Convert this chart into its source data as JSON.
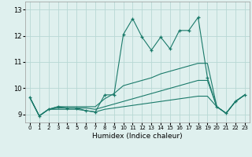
{
  "xlabel": "Humidex (Indice chaleur)",
  "bg_color": "#dff0ee",
  "grid_color": "#b8d8d4",
  "line_color": "#1a7a6a",
  "xlim": [
    -0.5,
    23.5
  ],
  "ylim": [
    8.7,
    13.3
  ],
  "yticks": [
    9,
    10,
    11,
    12,
    13
  ],
  "xticks": [
    0,
    1,
    2,
    3,
    4,
    5,
    6,
    7,
    8,
    9,
    10,
    11,
    12,
    13,
    14,
    15,
    16,
    17,
    18,
    19,
    20,
    21,
    22,
    23
  ],
  "series": [
    [
      9.65,
      8.95,
      9.2,
      9.2,
      9.2,
      9.2,
      9.15,
      9.1,
      9.2,
      9.25,
      9.3,
      9.35,
      9.4,
      9.45,
      9.5,
      9.55,
      9.6,
      9.65,
      9.7,
      9.7,
      9.3,
      9.05,
      9.5,
      9.75
    ],
    [
      9.65,
      8.95,
      9.2,
      9.25,
      9.25,
      9.25,
      9.25,
      9.2,
      9.3,
      9.4,
      9.5,
      9.6,
      9.7,
      9.8,
      9.9,
      10.0,
      10.1,
      10.2,
      10.3,
      10.3,
      9.3,
      9.05,
      9.5,
      9.75
    ],
    [
      9.65,
      8.95,
      9.2,
      9.3,
      9.3,
      9.3,
      9.3,
      9.3,
      9.6,
      9.8,
      10.1,
      10.2,
      10.3,
      10.4,
      10.55,
      10.65,
      10.75,
      10.85,
      10.95,
      10.95,
      9.3,
      9.05,
      9.5,
      9.75
    ],
    [
      9.65,
      8.95,
      9.2,
      9.3,
      9.25,
      9.25,
      9.15,
      9.1,
      9.75,
      9.75,
      12.05,
      12.65,
      11.95,
      11.45,
      11.95,
      11.5,
      12.2,
      12.2,
      12.7,
      10.4,
      9.3,
      9.05,
      9.5,
      9.75
    ]
  ]
}
